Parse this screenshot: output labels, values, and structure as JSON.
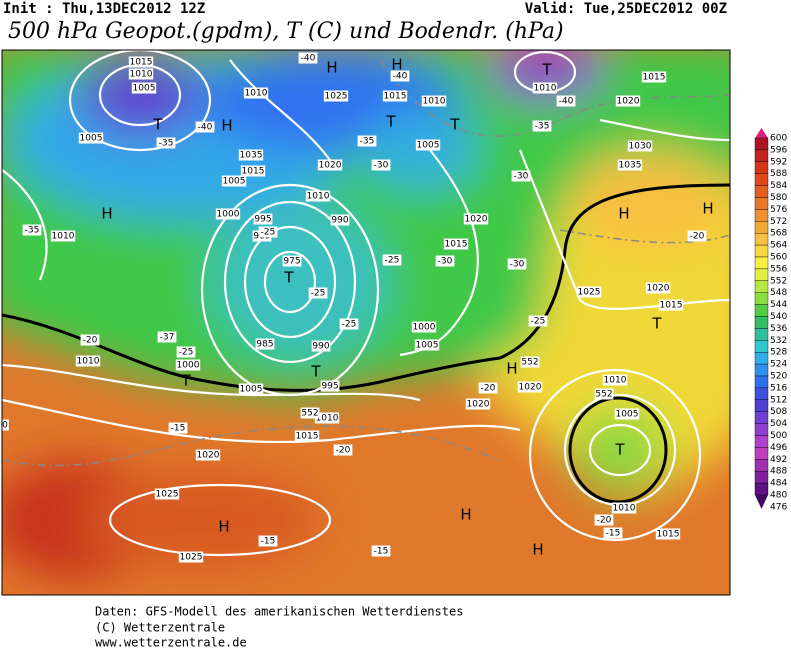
{
  "header": {
    "init": "Init : Thu,13DEC2012 12Z",
    "valid": "Valid: Tue,25DEC2012 00Z",
    "title": "500 hPa Geopot.(gpdm), T (C) und Bodendr. (hPa)"
  },
  "colorbar": {
    "levels": [
      600,
      596,
      592,
      588,
      584,
      580,
      576,
      572,
      568,
      564,
      560,
      556,
      552,
      548,
      544,
      540,
      536,
      532,
      528,
      524,
      520,
      516,
      512,
      508,
      504,
      500,
      496,
      492,
      488,
      484,
      480,
      476
    ]
  },
  "map": {
    "labels": [
      "1015",
      "1010",
      "1005",
      "1005",
      "T",
      "-40",
      "H",
      "-35",
      "1010",
      "1035",
      "1015",
      "1005",
      "1000",
      "H",
      "1010",
      "-35",
      "995",
      "985",
      "975",
      "T",
      "-25",
      "-25",
      "990",
      "985",
      "990",
      "T",
      "995",
      "-37",
      "-25",
      "-20",
      "1010",
      "1000",
      "T",
      "1005",
      "-15",
      "1015",
      "1010",
      "-20",
      "1020",
      "1025",
      "H",
      "1025",
      "-15",
      "H",
      "-15",
      "H",
      "-25",
      "-25",
      "1000",
      "1005",
      "1020",
      "1015",
      "-30",
      "-30",
      "-25",
      "H",
      "-40",
      "1025",
      "H",
      "-40",
      "1015",
      "1010",
      "T",
      "T",
      "-35",
      "1005",
      "1020",
      "-30",
      "1010",
      "-35",
      "T",
      "1010",
      "-40",
      "1015",
      "1020",
      "1030",
      "1035",
      "-30",
      "H",
      "H",
      "-20",
      "1025",
      "1020",
      "1015",
      "T",
      "H",
      "1020",
      "1020",
      "-20",
      "1010",
      "1005",
      "T",
      "1010",
      "-20",
      "-15",
      "1015",
      "552",
      "552",
      "552",
      "0"
    ]
  },
  "footer": {
    "lines": [
      "Daten: GFS-Modell des amerikanischen Wetterdienstes",
      "(C) Wetterzentrale",
      "www.wetterzentrale.de"
    ]
  }
}
